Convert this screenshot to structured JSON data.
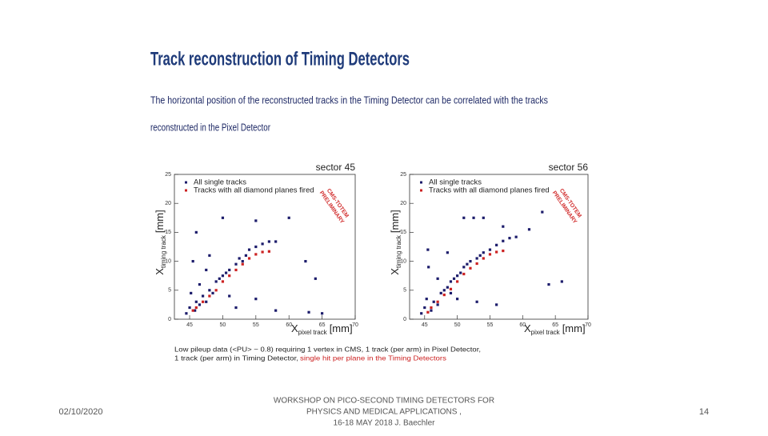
{
  "slide": {
    "title": "Track reconstruction of Timing Detectors",
    "text": [
      "The horizontal position of the reconstructed tracks in the Timing Detector can be correlated with the tracks",
      "reconstructed in the Pixel Detector"
    ],
    "caption": {
      "lines": [
        "Low pileup data (<PU> ~ 0.8) requiring 1 vertex in CMS, 1 track (per arm) in Pixel Detector,",
        "1 track (per arm) in Timing Detector,"
      ],
      "highlight": "single hit per plane in the Timing Detectors"
    }
  },
  "footer": {
    "date": "02/10/2020",
    "center": [
      "WORKSHOP ON PICO-SECOND TIMING DETECTORS FOR",
      "PHYSICS AND MEDICAL APPLICATIONS ,",
      "16-18 MAY 2018 J. Baechler"
    ],
    "page": "14"
  },
  "chart_data": [
    {
      "type": "scatter",
      "title": "sector 45",
      "x_label": {
        "main": "X",
        "sub": "pixel track",
        "unit": "[mm]"
      },
      "y_label": {
        "main": "X",
        "sub": "timing track",
        "unit": "[mm]"
      },
      "stamp": [
        "CMS-TOTEM",
        "PRELIMINARY"
      ],
      "xlim": [
        42.7,
        70
      ],
      "ylim": [
        0,
        25
      ],
      "xticks": [
        45,
        50,
        55,
        60,
        65,
        70
      ],
      "yticks": [
        0,
        5,
        10,
        15,
        20,
        25
      ],
      "series": [
        {
          "name": "All single tracks",
          "color": "#1c1c6b",
          "x": [
            44.5,
            45,
            45.2,
            45.5,
            45.8,
            46,
            46.5,
            47,
            47.5,
            48,
            48.5,
            49,
            49.5,
            50,
            50.5,
            51,
            52,
            52.5,
            53,
            53.5,
            54,
            55,
            56,
            57,
            58,
            46,
            46.5,
            48,
            50,
            55,
            60,
            62.5,
            64,
            65,
            63,
            52,
            55,
            58,
            47.5,
            51
          ],
          "values": [
            1,
            2,
            4.5,
            10,
            1.5,
            3,
            2.5,
            4,
            3,
            5,
            4.5,
            6.5,
            7,
            7.5,
            8,
            8.5,
            9.5,
            10.5,
            10,
            11,
            12,
            12.5,
            13,
            13.4,
            13.4,
            15,
            6,
            11,
            17.5,
            17,
            17.5,
            10,
            7,
            1,
            1.2,
            2,
            3.5,
            1.5,
            8.5,
            4
          ]
        },
        {
          "name": "Tracks with all diamond planes fired",
          "color": "#cc2222",
          "x": [
            45.5,
            46,
            47,
            48,
            49,
            50,
            51,
            52,
            53,
            54,
            55,
            56,
            57
          ],
          "values": [
            1.5,
            2,
            3,
            4,
            5,
            6.5,
            7.5,
            8.5,
            9.5,
            10.5,
            11.2,
            11.6,
            11.7
          ]
        }
      ]
    },
    {
      "type": "scatter",
      "title": "sector 56",
      "x_label": {
        "main": "X",
        "sub": "pixel track",
        "unit": "[mm]"
      },
      "y_label": {
        "main": "X",
        "sub": "timing track",
        "unit": "[mm]"
      },
      "stamp": [
        "CMS-TOTEM",
        "PRELIMINARY"
      ],
      "xlim": [
        42.7,
        70
      ],
      "ylim": [
        0,
        25
      ],
      "xticks": [
        45,
        50,
        55,
        60,
        65,
        70
      ],
      "yticks": [
        0,
        5,
        10,
        15,
        20,
        25
      ],
      "series": [
        {
          "name": "All single tracks",
          "color": "#1c1c6b",
          "x": [
            44.5,
            45,
            45.3,
            45.6,
            46,
            46.4,
            47,
            47.5,
            48,
            48.5,
            49,
            49.5,
            50,
            50.5,
            51,
            51.5,
            52,
            53,
            53.5,
            54,
            55,
            56,
            57,
            58,
            59,
            45.5,
            47,
            48.5,
            51,
            52.5,
            54,
            57,
            61,
            63,
            64,
            66,
            53,
            56,
            49,
            50
          ],
          "values": [
            1,
            2,
            3.5,
            9,
            1.5,
            3,
            2.5,
            4.5,
            5,
            5.5,
            6.5,
            7,
            7.5,
            8,
            9,
            9.5,
            10,
            10.5,
            11,
            11.5,
            12,
            12.8,
            13.5,
            14,
            14.2,
            12,
            7,
            11.5,
            17.5,
            17.5,
            17.5,
            16,
            15.5,
            18.5,
            6,
            6.5,
            3,
            2.5,
            4.5,
            3.5
          ]
        },
        {
          "name": "Tracks with all diamond planes fired",
          "color": "#cc2222",
          "x": [
            45.5,
            46,
            47,
            48,
            49,
            50,
            51,
            52,
            53,
            54,
            55,
            56,
            57
          ],
          "values": [
            1.2,
            2,
            3,
            4.2,
            5.2,
            6.5,
            7.8,
            8.8,
            9.6,
            10.5,
            11.2,
            11.6,
            11.8
          ]
        }
      ]
    }
  ]
}
